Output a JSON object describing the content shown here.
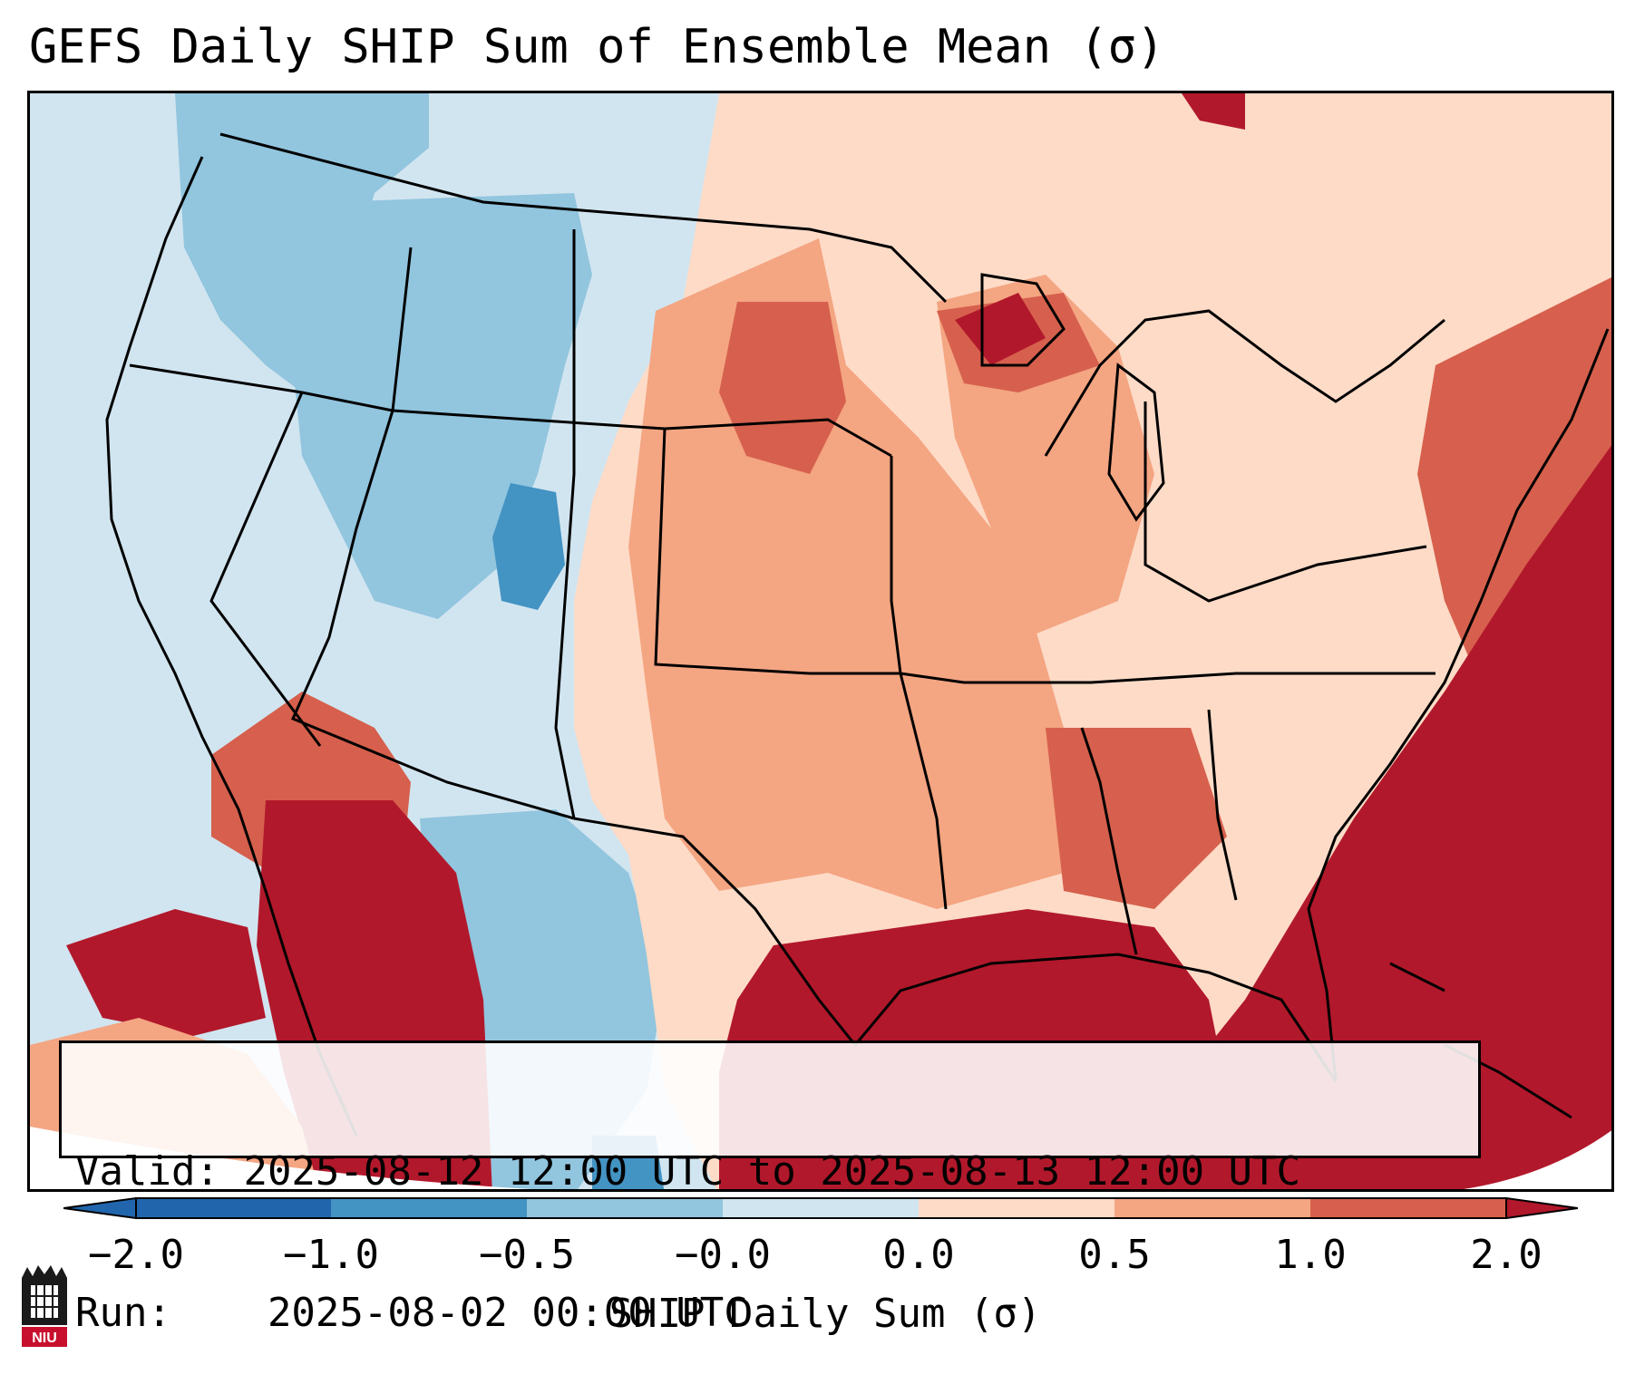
{
  "title": "GEFS Daily SHIP Sum of Ensemble Mean (σ)",
  "info": {
    "valid_label": "Valid:",
    "valid_value": "2025-08-12 12:00 UTC to 2025-08-13 12:00 UTC",
    "run_label": "Run:",
    "run_value": "2025-08-02 00:00 UTC"
  },
  "colorbar": {
    "label": "SHIP Daily Sum (σ)",
    "ticks": [
      "−2.0",
      "−1.0",
      "−0.5",
      "−0.0",
      "0.0",
      "0.5",
      "1.0",
      "2.0"
    ],
    "colors": [
      "#2166ac",
      "#4393c3",
      "#92c5de",
      "#d1e5f0",
      "#ffffff",
      "#fddbc7",
      "#f4a582",
      "#d6604d",
      "#b2182b"
    ]
  },
  "logo": {
    "text": "NIU",
    "name": "niu-logo"
  }
}
